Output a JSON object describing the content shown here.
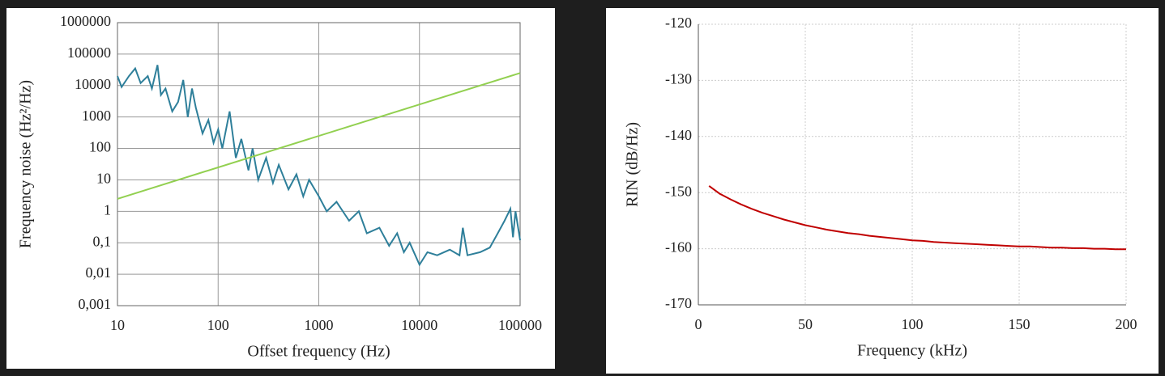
{
  "chart_data": [
    {
      "type": "line",
      "xlabel": "Offset frequency (Hz)",
      "ylabel": "Frequency noise (Hz²/Hz)",
      "xscale": "log",
      "yscale": "log",
      "grid": true,
      "xlim": [
        10,
        100000
      ],
      "xticks": [
        10,
        100,
        1000,
        10000,
        100000
      ],
      "ylim": [
        0.001,
        1000000
      ],
      "yticks": [
        {
          "value": 0.001,
          "label": "0,001"
        },
        {
          "value": 0.01,
          "label": "0,01"
        },
        {
          "value": 0.1,
          "label": "0,1"
        },
        1,
        10,
        100,
        1000,
        10000,
        100000,
        1000000
      ],
      "series": [
        {
          "color": "#2e7f9a",
          "x": [
            10,
            11,
            13,
            15,
            17,
            20,
            22,
            25,
            27,
            30,
            35,
            40,
            45,
            50,
            55,
            60,
            70,
            80,
            90,
            100,
            110,
            130,
            150,
            170,
            200,
            220,
            250,
            300,
            350,
            400,
            500,
            600,
            700,
            800,
            1000,
            1200,
            1500,
            2000,
            2500,
            3000,
            4000,
            5000,
            6000,
            7000,
            8000,
            10000,
            12000,
            15000,
            20000,
            25000,
            27000,
            30000,
            40000,
            50000,
            60000,
            70000,
            80000,
            85000,
            90000,
            100000
          ],
          "values": [
            20000,
            9000,
            20000,
            35000,
            12000,
            20000,
            8000,
            45000,
            5000,
            8000,
            1500,
            3000,
            15000,
            1000,
            8000,
            2000,
            300,
            800,
            150,
            400,
            100,
            1500,
            50,
            200,
            20,
            100,
            10,
            50,
            8,
            30,
            5,
            15,
            3,
            10,
            3,
            1,
            2,
            0.5,
            1,
            0.2,
            0.3,
            0.08,
            0.2,
            0.05,
            0.1,
            0.02,
            0.05,
            0.04,
            0.06,
            0.04,
            0.3,
            0.04,
            0.05,
            0.07,
            0.2,
            0.5,
            1.2,
            0.15,
            1,
            0.12
          ]
        },
        {
          "color": "#92d050",
          "x": [
            10,
            100000
          ],
          "values": [
            2.5,
            25000
          ]
        }
      ]
    },
    {
      "type": "line",
      "xlabel": "Frequency (kHz)",
      "ylabel": "RIN (dB/Hz)",
      "grid": true,
      "xlim": [
        0,
        200
      ],
      "xticks": [
        0,
        50,
        100,
        150,
        200
      ],
      "ylim": [
        -170,
        -120
      ],
      "yticks": [
        -170,
        -160,
        -150,
        -140,
        -130,
        -120
      ],
      "series": [
        {
          "color": "#c00000",
          "x": [
            5,
            10,
            15,
            20,
            25,
            30,
            35,
            40,
            45,
            50,
            55,
            60,
            65,
            70,
            75,
            80,
            85,
            90,
            95,
            100,
            105,
            110,
            115,
            120,
            125,
            130,
            135,
            140,
            145,
            150,
            155,
            160,
            165,
            170,
            175,
            180,
            185,
            190,
            195,
            200
          ],
          "values": [
            -148.8,
            -150.2,
            -151.2,
            -152.1,
            -152.9,
            -153.6,
            -154.2,
            -154.8,
            -155.3,
            -155.8,
            -156.2,
            -156.6,
            -156.9,
            -157.2,
            -157.4,
            -157.7,
            -157.9,
            -158.1,
            -158.3,
            -158.5,
            -158.6,
            -158.8,
            -158.9,
            -159.0,
            -159.1,
            -159.2,
            -159.3,
            -159.4,
            -159.5,
            -159.6,
            -159.6,
            -159.7,
            -159.8,
            -159.8,
            -159.9,
            -159.9,
            -160.0,
            -160.0,
            -160.1,
            -160.1
          ]
        }
      ]
    }
  ]
}
